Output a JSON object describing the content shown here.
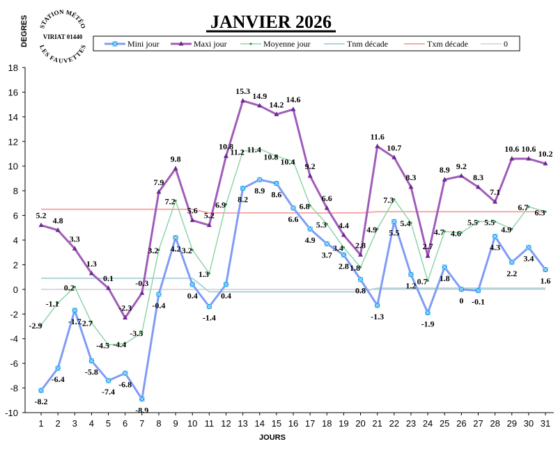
{
  "chart_data": {
    "type": "line",
    "title": "JANVIER 2026",
    "xlabel": "JOURS",
    "ylabel": "DEGRES",
    "ylim": [
      -10,
      18
    ],
    "yticks": [
      -10,
      -8,
      -6,
      -4,
      -2,
      0,
      2,
      4,
      6,
      8,
      10,
      12,
      14,
      16,
      18
    ],
    "x": [
      1,
      2,
      3,
      4,
      5,
      6,
      7,
      8,
      9,
      10,
      11,
      12,
      13,
      14,
      15,
      16,
      17,
      18,
      19,
      20,
      21,
      22,
      23,
      24,
      25,
      26,
      27,
      28,
      29,
      30,
      31
    ],
    "legend_position": "top",
    "grid": false,
    "series": [
      {
        "name": "Mini jour",
        "color": "#7f9cf5",
        "marker": "square-star",
        "marker_color": "#1ea0f0",
        "labels": true,
        "values": [
          -8.2,
          -6.4,
          -1.7,
          -5.8,
          -7.4,
          -6.8,
          -8.9,
          -0.4,
          4.2,
          0.4,
          -1.4,
          0.4,
          8.2,
          8.9,
          8.6,
          6.6,
          4.9,
          3.7,
          2.8,
          0.8,
          -1.3,
          5.5,
          1.2,
          -1.9,
          1.8,
          0,
          -0.1,
          4.3,
          2.2,
          3.4,
          1.6
        ]
      },
      {
        "name": "Maxi jour",
        "color": "#a05cb8",
        "marker": "triangle",
        "marker_color": "#6a2a90",
        "labels": true,
        "values": [
          5.2,
          4.8,
          3.3,
          1.3,
          0.1,
          -2.3,
          -0.3,
          7.9,
          9.8,
          5.6,
          5.2,
          10.8,
          15.3,
          14.9,
          14.2,
          14.6,
          9.2,
          6.6,
          4.4,
          2.8,
          11.6,
          10.7,
          8.3,
          2.7,
          8.9,
          9.2,
          8.3,
          7.1,
          10.6,
          10.6,
          10.2
        ]
      },
      {
        "name": "Moyenne jour",
        "color": "#8fd4a8",
        "marker": "dot",
        "marker_color": "#2a9a50",
        "labels": true,
        "values": [
          -2.9,
          -1.1,
          0.2,
          -2.7,
          -4.5,
          -4.4,
          -3.5,
          3.2,
          7.2,
          3.2,
          1.3,
          6.9,
          11.2,
          11.4,
          10.8,
          10.4,
          6.8,
          5.3,
          3.4,
          1.8,
          4.9,
          7.3,
          5.4,
          0.7,
          4.7,
          4.6,
          5.5,
          5.5,
          4.9,
          6.7,
          6.3
        ]
      },
      {
        "name": "Tnm décade",
        "color": "#b0d4dc",
        "marker": "none",
        "labels": false,
        "values": [
          0.9,
          0.9,
          0.9,
          0.9,
          0.9,
          0.9,
          0.9,
          0.9,
          0.9,
          0.9,
          -0.2,
          -0.2,
          -0.2,
          -0.2,
          -0.2,
          -0.2,
          -0.2,
          -0.2,
          -0.2,
          -0.2,
          0.1,
          0.1,
          0.1,
          0.1,
          0.1,
          0.1,
          0.1,
          0.1,
          0.1,
          0.1,
          0.1
        ]
      },
      {
        "name": "Txm décade",
        "color": "#f4aaaa",
        "marker": "none",
        "labels": false,
        "values": [
          6.5,
          6.5,
          6.5,
          6.5,
          6.5,
          6.5,
          6.5,
          6.5,
          6.5,
          6.5,
          6.2,
          6.2,
          6.2,
          6.2,
          6.2,
          6.2,
          6.2,
          6.2,
          6.2,
          6.2,
          6.3,
          6.3,
          6.3,
          6.3,
          6.3,
          6.3,
          6.3,
          6.3,
          6.3,
          6.3,
          6.3
        ]
      },
      {
        "name": "0",
        "color": "#b8b8b8",
        "marker": "none",
        "labels": false,
        "values": [
          0,
          0,
          0,
          0,
          0,
          0,
          0,
          0,
          0,
          0,
          0,
          0,
          0,
          0,
          0,
          0,
          0,
          0,
          0,
          0,
          0,
          0,
          0,
          0,
          0,
          0,
          0,
          0,
          0,
          0,
          0
        ]
      }
    ]
  },
  "logo": {
    "top": "STATION MÉTÉO",
    "middle": "VIRIAT 01440",
    "bottom": "LES FAUVETTES"
  }
}
